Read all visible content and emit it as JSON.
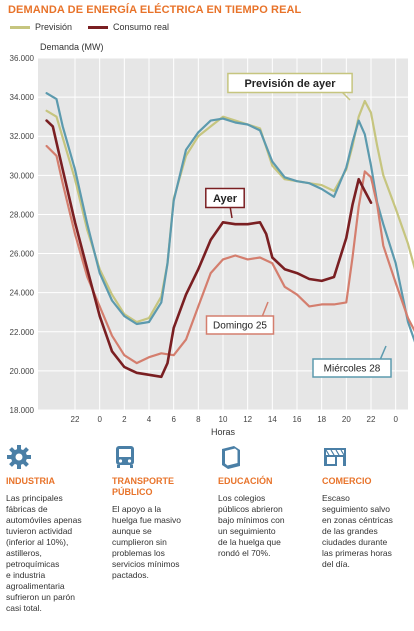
{
  "header": {
    "title": "DEMANDA DE ENERGÍA ELÉCTRICA EN TIEMPO REAL"
  },
  "legend": [
    {
      "label": "Previsión",
      "color": "#c6c57f"
    },
    {
      "label": "Consumo real",
      "color": "#7a1f22"
    }
  ],
  "colors": {
    "accent": "#e8732a",
    "ayer": "#7a1f22",
    "prevision": "#c6c57f",
    "domingo": "#d47e6e",
    "miercoles": "#5c9aae",
    "plot_bg": "#e6e6e6"
  },
  "chart_data": {
    "type": "line",
    "ylabel": "Demanda (MW)",
    "xlabel": "Horas",
    "yticks": [
      "36.000",
      "34.000",
      "32.000",
      "30.000",
      "28.000",
      "26.000",
      "24.000",
      "22.000",
      "20.000",
      "18.000"
    ],
    "ylim": [
      18000,
      36000
    ],
    "xlim": [
      -3,
      27
    ],
    "xticks": [
      {
        "value": 0,
        "label": "22"
      },
      {
        "value": 2,
        "label": "0"
      },
      {
        "value": 4,
        "label": "2"
      },
      {
        "value": 6,
        "label": "4"
      },
      {
        "value": 8,
        "label": "6"
      },
      {
        "value": 10,
        "label": "8"
      },
      {
        "value": 12,
        "label": "10"
      },
      {
        "value": 14,
        "label": "12"
      },
      {
        "value": 16,
        "label": "14"
      },
      {
        "value": 18,
        "label": "16"
      },
      {
        "value": 20,
        "label": "18"
      },
      {
        "value": 22,
        "label": "20"
      },
      {
        "value": 24,
        "label": "22"
      },
      {
        "value": 26,
        "label": "0"
      },
      {
        "value": 28,
        "label": "2"
      }
    ],
    "grid": true,
    "series": [
      {
        "name": "Previsión de ayer",
        "color": "#c6c57f",
        "x": [
          -2.3,
          -1.5,
          0,
          1,
          2,
          3,
          4,
          5,
          6,
          7,
          7.5,
          8,
          9,
          10,
          11,
          12,
          13,
          14,
          15,
          16,
          17,
          18,
          19,
          20,
          21,
          22,
          22.5,
          23,
          23.5,
          24,
          24.5,
          25,
          26,
          27,
          28,
          28.5
        ],
        "y": [
          33300,
          33000,
          29800,
          27200,
          25200,
          23900,
          22900,
          22500,
          22700,
          23800,
          25500,
          28800,
          31000,
          32000,
          32500,
          33000,
          32800,
          32600,
          32400,
          30500,
          29800,
          29700,
          29600,
          29500,
          29200,
          30300,
          31500,
          33000,
          33800,
          33200,
          31500,
          30000,
          28300,
          26500,
          24200,
          23400
        ]
      },
      {
        "name": "Miércoles 28",
        "color": "#5c9aae",
        "x": [
          -2.3,
          -1.5,
          -1,
          0,
          1,
          2,
          3,
          4,
          5,
          6,
          7,
          7.5,
          8,
          9,
          10,
          11,
          12,
          13,
          14,
          15,
          16,
          17,
          18,
          19,
          20,
          21,
          22,
          22.5,
          23,
          23.5,
          24,
          24.5,
          25,
          26,
          27,
          28
        ],
        "y": [
          34200,
          33900,
          32500,
          30300,
          27500,
          25000,
          23600,
          22800,
          22400,
          22500,
          23500,
          25500,
          28700,
          31300,
          32200,
          32800,
          32900,
          32700,
          32600,
          32300,
          30700,
          29900,
          29700,
          29600,
          29300,
          28900,
          30400,
          31700,
          32800,
          32100,
          30500,
          28600,
          27500,
          25500,
          22500,
          20700
        ]
      },
      {
        "name": "Ayer",
        "color": "#7a1f22",
        "x": [
          -2.3,
          -1.8,
          -1,
          0,
          1,
          2,
          3,
          4,
          5,
          6,
          7,
          7.5,
          8,
          9,
          10,
          11,
          12,
          13,
          14,
          15,
          15.5,
          16,
          17,
          18,
          19,
          20,
          21,
          22,
          22.5,
          23,
          23.5,
          24
        ],
        "y": [
          32800,
          32500,
          30300,
          27600,
          25200,
          22800,
          21000,
          20200,
          19900,
          19800,
          19700,
          20400,
          22200,
          23900,
          25200,
          26700,
          27600,
          27500,
          27500,
          27600,
          27000,
          25800,
          25200,
          25000,
          24700,
          24600,
          24800,
          26800,
          28500,
          29800,
          29200,
          28600
        ]
      },
      {
        "name": "Domingo 25",
        "color": "#d47e6e",
        "x": [
          -2.3,
          -1.5,
          -1,
          0,
          1,
          2,
          3,
          4,
          5,
          6,
          7,
          8,
          9,
          10,
          11,
          12,
          13,
          14,
          15,
          16,
          17,
          18,
          19,
          20,
          21,
          22,
          22.5,
          23,
          23.5,
          24,
          24.5,
          25,
          26,
          27,
          28,
          28.5
        ],
        "y": [
          31500,
          31000,
          29600,
          27000,
          24800,
          23300,
          21800,
          20800,
          20400,
          20700,
          20900,
          20800,
          21600,
          23300,
          25000,
          25700,
          25900,
          25700,
          25800,
          25500,
          24300,
          23900,
          23300,
          23400,
          23400,
          23500,
          25800,
          28400,
          30200,
          29900,
          28500,
          26400,
          24500,
          22700,
          21500,
          21000
        ]
      }
    ],
    "annotations": [
      {
        "label": "Previsión de ayer",
        "series": "Previsión de ayer"
      },
      {
        "label": "Ayer",
        "series": "Ayer"
      },
      {
        "label": "Domingo 25",
        "series": "Domingo 25"
      },
      {
        "label": "Miércoles 28",
        "series": "Miércoles 28"
      }
    ]
  },
  "categories": [
    {
      "icon": "gear-icon",
      "title_lines": [
        "INDUSTRIA"
      ],
      "text_lines": [
        "Las principales",
        "fábricas de",
        "automóviles apenas",
        "tuvieron actividad",
        "(inferior al 10%),",
        "astilleros,",
        "petroquímicas",
        "e industria",
        "agroalimentaria",
        "sufrieron un parón",
        "casi total."
      ]
    },
    {
      "icon": "bus-icon",
      "title_lines": [
        "TRANSPORTE",
        "PÚBLICO"
      ],
      "text_lines": [
        "El apoyo a la",
        "huelga fue masivo",
        "aunque se",
        "cumplieron sin",
        "problemas los",
        "servicios mínimos",
        "pactados."
      ]
    },
    {
      "icon": "book-icon",
      "title_lines": [
        "EDUCACIÓN"
      ],
      "text_lines": [
        "Los colegios",
        "públicos abrieron",
        "bajo mínimos con",
        "un seguimiento",
        "de la huelga que",
        "rondó el 70%."
      ]
    },
    {
      "icon": "shop-icon",
      "title_lines": [
        "COMERCIO"
      ],
      "text_lines": [
        "Escaso",
        "seguimiento salvo",
        "en zonas céntricas",
        "de las grandes",
        "ciudades durante",
        "las primeras horas",
        "del día."
      ]
    }
  ]
}
